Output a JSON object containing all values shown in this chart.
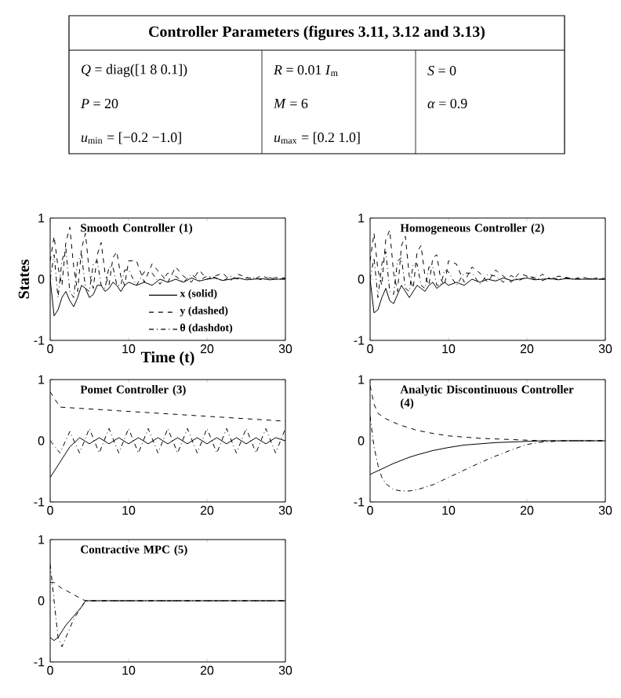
{
  "chart_data": [
    {
      "type": "other",
      "title": "Controller Parameters (figures 3.11, 3.12 and 3.13)",
      "annotations": [
        "*Q* = diag([1  8  0.1])",
        "*R* = 0.01 *I*$_{m}$",
        "*S* = 0",
        "*P* = 20",
        "*M* = 6",
        "*α* = 0.9",
        "*u*$_{min}$ = [−0.2   −1.0]",
        "*u*$_{max}$ = [0.2   1.0]"
      ]
    },
    {
      "type": "line",
      "title": "Smooth Controller (1)",
      "xlabel": "Time (t)",
      "ylabel": "States",
      "legend": "bottom right",
      "xlim": [
        0,
        30
      ],
      "ylim": [
        -1,
        1
      ],
      "xticks": [
        0,
        10,
        20,
        30
      ],
      "yticks": [
        -1,
        0,
        1
      ],
      "x": [
        0,
        0.5,
        1,
        1.5,
        2,
        2.5,
        3,
        3.5,
        4,
        4.5,
        5,
        5.5,
        6,
        6.5,
        7,
        7.5,
        8,
        8.5,
        9,
        9.5,
        10,
        11,
        12,
        13,
        14,
        15,
        16,
        17,
        18,
        19,
        20,
        21,
        22,
        23,
        24,
        25,
        26,
        27,
        28,
        29,
        30
      ],
      "series": [
        {
          "name": "x (solid)",
          "color": "#000000",
          "line_style": "solid",
          "values": [
            0,
            -0.6,
            -0.5,
            -0.3,
            -0.2,
            -0.35,
            -0.45,
            -0.3,
            -0.1,
            -0.15,
            -0.3,
            -0.25,
            -0.1,
            -0.1,
            -0.2,
            -0.15,
            -0.05,
            -0.1,
            -0.2,
            -0.1,
            -0.05,
            -0.1,
            -0.05,
            -0.1,
            0,
            -0.05,
            0,
            -0.05,
            0.02,
            -0.03,
            0,
            0.02,
            -0.02,
            0,
            0.02,
            -0.01,
            0,
            0.01,
            -0.01,
            0,
            0
          ]
        },
        {
          "name": "y (dashed)",
          "color": "#000000",
          "line_style": "dashed",
          "values": [
            0.3,
            0.7,
            0.2,
            -0.1,
            0.6,
            0.85,
            0.2,
            -0.2,
            0.5,
            0.75,
            0.1,
            -0.15,
            0.4,
            0.6,
            0.1,
            -0.1,
            0.35,
            0.45,
            0.05,
            -0.1,
            0.3,
            0.3,
            -0.05,
            0.25,
            0.1,
            -0.05,
            0.2,
            0.05,
            -0.05,
            0.15,
            0,
            0.05,
            0.1,
            -0.02,
            0.08,
            0.03,
            0,
            0.06,
            0,
            0.03,
            0.02
          ]
        },
        {
          "name": "θ (dashdot)",
          "color": "#000000",
          "line_style": "dashdot",
          "values": [
            0,
            0.4,
            -0.3,
            0.3,
            0.5,
            -0.2,
            -0.3,
            0.3,
            0.4,
            -0.15,
            -0.2,
            0.25,
            0.3,
            -0.1,
            -0.15,
            0.2,
            0.2,
            -0.1,
            -0.1,
            0.15,
            0.15,
            -0.1,
            0.12,
            0.1,
            -0.08,
            0.1,
            0.05,
            -0.05,
            0.08,
            -0.02,
            0.05,
            0.03,
            -0.03,
            0.05,
            0,
            0.02,
            0.02,
            -0.01,
            0.02,
            0,
            0.01
          ]
        }
      ]
    },
    {
      "type": "line",
      "title": "Homogeneous Controller (2)",
      "xlim": [
        0,
        30
      ],
      "ylim": [
        -1,
        1
      ],
      "xticks": [
        0,
        10,
        20,
        30
      ],
      "yticks": [
        -1,
        0,
        1
      ],
      "x": [
        0,
        0.5,
        1,
        1.5,
        2,
        2.5,
        3,
        3.5,
        4,
        4.5,
        5,
        5.5,
        6,
        6.5,
        7,
        7.5,
        8,
        8.5,
        9,
        9.5,
        10,
        11,
        12,
        13,
        14,
        15,
        16,
        17,
        18,
        19,
        20,
        21,
        22,
        23,
        24,
        25,
        26,
        27,
        28,
        29,
        30
      ],
      "series": [
        {
          "color": "#000000",
          "line_style": "solid",
          "values": [
            0,
            -0.55,
            -0.5,
            -0.3,
            -0.15,
            -0.35,
            -0.4,
            -0.25,
            -0.1,
            -0.2,
            -0.3,
            -0.2,
            -0.1,
            -0.15,
            -0.2,
            -0.1,
            -0.05,
            -0.15,
            -0.1,
            -0.05,
            -0.1,
            -0.05,
            -0.1,
            0,
            -0.05,
            0,
            -0.03,
            0.02,
            -0.02,
            0,
            0.02,
            -0.01,
            0,
            0.01,
            -0.01,
            0.01,
            0,
            0,
            0,
            0,
            0
          ]
        },
        {
          "color": "#000000",
          "line_style": "dashed",
          "values": [
            0.3,
            0.75,
            0.15,
            -0.1,
            0.65,
            0.8,
            0.1,
            -0.2,
            0.55,
            0.7,
            0.05,
            -0.15,
            0.45,
            0.55,
            0.05,
            -0.1,
            0.35,
            0.4,
            0,
            -0.1,
            0.3,
            0.25,
            -0.05,
            0.2,
            0.1,
            -0.05,
            0.15,
            0.05,
            -0.05,
            0.1,
            0.05,
            0,
            0.08,
            0,
            0.05,
            0.03,
            0,
            0.04,
            0,
            0.02,
            0.01
          ]
        },
        {
          "color": "#000000",
          "line_style": "dashdot",
          "values": [
            0,
            0.35,
            -0.3,
            0.25,
            0.45,
            -0.2,
            -0.25,
            0.3,
            0.35,
            -0.15,
            -0.2,
            0.25,
            0.25,
            -0.1,
            -0.15,
            0.2,
            0.2,
            -0.1,
            -0.1,
            0.15,
            0.12,
            -0.1,
            0.1,
            0.1,
            -0.08,
            0.08,
            0.05,
            -0.05,
            0.06,
            -0.02,
            0.04,
            0.03,
            -0.02,
            0.03,
            0,
            0.02,
            0.01,
            0,
            0.01,
            0,
            0
          ]
        }
      ]
    },
    {
      "type": "line",
      "title": "Pomet Controller (3)",
      "xlim": [
        0,
        30
      ],
      "ylim": [
        -1,
        1
      ],
      "xticks": [
        0,
        10,
        20,
        30
      ],
      "yticks": [
        -1,
        0,
        1
      ],
      "x": [
        0,
        1.25,
        2.5,
        3.75,
        5,
        6.25,
        7.5,
        8.75,
        10,
        11.25,
        12.5,
        13.75,
        15,
        16.25,
        17.5,
        18.75,
        20,
        21.25,
        22.5,
        23.75,
        25,
        26.25,
        27.5,
        28.75,
        30
      ],
      "series": [
        {
          "color": "#000000",
          "line_style": "solid",
          "values": [
            -0.6,
            -0.35,
            -0.1,
            0.05,
            -0.05,
            0.05,
            -0.05,
            0.05,
            -0.05,
            0.05,
            -0.05,
            0.05,
            -0.05,
            0.05,
            -0.05,
            0.05,
            -0.05,
            0.05,
            -0.05,
            0.05,
            -0.05,
            0.05,
            -0.05,
            0.05,
            0
          ]
        },
        {
          "color": "#000000",
          "line_style": "dashed",
          "values": [
            0.8,
            0.55,
            0.54,
            0.53,
            0.52,
            0.51,
            0.5,
            0.49,
            0.48,
            0.47,
            0.46,
            0.45,
            0.44,
            0.43,
            0.42,
            0.41,
            0.4,
            0.39,
            0.38,
            0.37,
            0.36,
            0.35,
            0.34,
            0.33,
            0.32
          ]
        },
        {
          "color": "#000000",
          "line_style": "dashdot",
          "values": [
            0,
            -0.2,
            0.15,
            -0.2,
            0.2,
            -0.2,
            0.2,
            -0.2,
            0.2,
            -0.2,
            0.2,
            -0.2,
            0.2,
            -0.2,
            0.2,
            -0.2,
            0.2,
            -0.2,
            0.2,
            -0.2,
            0.2,
            -0.2,
            0.2,
            -0.2,
            0.2
          ]
        }
      ]
    },
    {
      "type": "line",
      "title": "Analytic Discontinuous Controller (4)",
      "xlim": [
        0,
        30
      ],
      "ylim": [
        -1,
        1
      ],
      "xticks": [
        0,
        10,
        20,
        30
      ],
      "yticks": [
        -1,
        0,
        1
      ],
      "x": [
        0,
        0.5,
        1,
        1.5,
        2,
        3,
        4,
        5,
        6,
        8,
        10,
        12,
        14,
        16,
        18,
        20,
        22,
        25,
        30
      ],
      "series": [
        {
          "color": "#000000",
          "line_style": "solid",
          "values": [
            -0.55,
            -0.52,
            -0.49,
            -0.46,
            -0.43,
            -0.37,
            -0.32,
            -0.27,
            -0.23,
            -0.16,
            -0.11,
            -0.07,
            -0.05,
            -0.03,
            -0.02,
            -0.01,
            0,
            0,
            0
          ]
        },
        {
          "color": "#000000",
          "line_style": "dashed",
          "values": [
            0.9,
            0.6,
            0.45,
            0.4,
            0.36,
            0.3,
            0.25,
            0.21,
            0.17,
            0.12,
            0.08,
            0.06,
            0.04,
            0.03,
            0.02,
            0.01,
            0,
            0,
            0
          ]
        },
        {
          "color": "#000000",
          "line_style": "dashdot",
          "values": [
            0.4,
            -0.1,
            -0.4,
            -0.6,
            -0.7,
            -0.8,
            -0.82,
            -0.82,
            -0.8,
            -0.72,
            -0.6,
            -0.48,
            -0.36,
            -0.25,
            -0.15,
            -0.06,
            -0.02,
            0,
            0
          ]
        }
      ]
    },
    {
      "type": "line",
      "title": "Contractive MPC (5)",
      "xlim": [
        0,
        30
      ],
      "ylim": [
        -1,
        1
      ],
      "xticks": [
        0,
        10,
        20,
        30
      ],
      "yticks": [
        -1,
        0,
        1
      ],
      "x": [
        0,
        0.5,
        1,
        1.5,
        2,
        3,
        4,
        4.5,
        5,
        10,
        20,
        30
      ],
      "series": [
        {
          "color": "#000000",
          "line_style": "solid",
          "values": [
            -0.6,
            -0.65,
            -0.6,
            -0.5,
            -0.4,
            -0.25,
            -0.1,
            0,
            0,
            0,
            0,
            0
          ]
        },
        {
          "color": "#000000",
          "line_style": "dashed",
          "values": [
            0.3,
            0.3,
            0.25,
            0.2,
            0.17,
            0.1,
            0.03,
            0,
            0,
            0,
            0,
            0
          ]
        },
        {
          "color": "#000000",
          "line_style": "dashdot",
          "values": [
            0.6,
            0,
            -0.6,
            -0.75,
            -0.6,
            -0.3,
            -0.1,
            0,
            0,
            0,
            0,
            0
          ]
        }
      ]
    }
  ]
}
